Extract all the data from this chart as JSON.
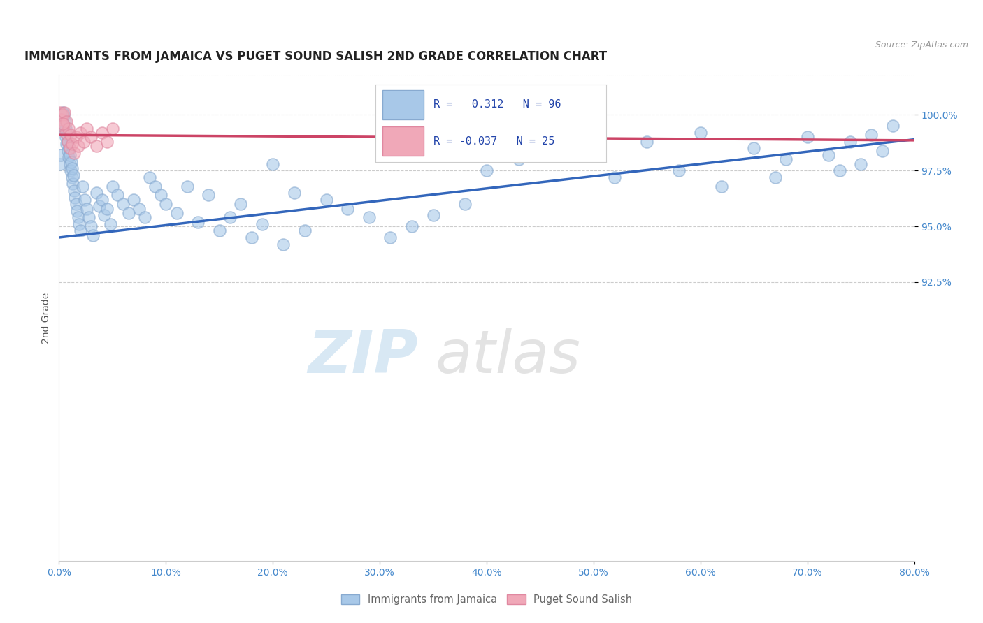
{
  "title": "IMMIGRANTS FROM JAMAICA VS PUGET SOUND SALISH 2ND GRADE CORRELATION CHART",
  "source": "Source: ZipAtlas.com",
  "ylabel": "2nd Grade",
  "xlim": [
    0.0,
    80.0
  ],
  "ylim": [
    80.0,
    101.8
  ],
  "x_ticks": [
    0.0,
    10.0,
    20.0,
    30.0,
    40.0,
    50.0,
    60.0,
    70.0,
    80.0
  ],
  "y_ticks": [
    92.5,
    95.0,
    97.5,
    100.0
  ],
  "blue_r": 0.312,
  "blue_n": 96,
  "pink_r": -0.037,
  "pink_n": 25,
  "blue_color": "#a8c8e8",
  "pink_color": "#f0a8b8",
  "blue_edge_color": "#88aad0",
  "pink_edge_color": "#e088a0",
  "blue_line_color": "#3366bb",
  "pink_line_color": "#cc4466",
  "watermark_zip": "ZIP",
  "watermark_atlas": "atlas",
  "legend_label_blue": "Immigrants from Jamaica",
  "legend_label_pink": "Puget Sound Salish",
  "blue_slope": 0.055,
  "blue_intercept": 94.5,
  "pink_slope": -0.003,
  "pink_intercept": 99.1,
  "blue_x": [
    0.1,
    0.15,
    0.2,
    0.25,
    0.3,
    0.35,
    0.4,
    0.45,
    0.5,
    0.55,
    0.6,
    0.65,
    0.7,
    0.75,
    0.8,
    0.85,
    0.9,
    0.95,
    1.0,
    1.05,
    1.1,
    1.15,
    1.2,
    1.25,
    1.3,
    1.35,
    1.4,
    1.5,
    1.6,
    1.7,
    1.8,
    1.9,
    2.0,
    2.2,
    2.4,
    2.6,
    2.8,
    3.0,
    3.2,
    3.5,
    3.8,
    4.0,
    4.2,
    4.5,
    4.8,
    5.0,
    5.5,
    6.0,
    6.5,
    7.0,
    7.5,
    8.0,
    8.5,
    9.0,
    9.5,
    10.0,
    11.0,
    12.0,
    13.0,
    14.0,
    15.0,
    16.0,
    17.0,
    18.0,
    19.0,
    20.0,
    21.0,
    22.0,
    23.0,
    25.0,
    27.0,
    29.0,
    31.0,
    33.0,
    35.0,
    38.0,
    40.0,
    43.0,
    46.0,
    50.0,
    52.0,
    55.0,
    58.0,
    60.0,
    62.0,
    65.0,
    67.0,
    68.0,
    70.0,
    72.0,
    73.0,
    74.0,
    75.0,
    76.0,
    77.0,
    78.0
  ],
  "blue_y": [
    97.8,
    98.2,
    99.5,
    100.0,
    99.8,
    100.1,
    99.6,
    100.0,
    99.3,
    99.7,
    99.0,
    99.4,
    98.7,
    99.1,
    98.4,
    98.8,
    98.1,
    98.5,
    97.8,
    98.2,
    97.5,
    97.9,
    97.2,
    97.6,
    96.9,
    97.3,
    96.6,
    96.3,
    96.0,
    95.7,
    95.4,
    95.1,
    94.8,
    96.8,
    96.2,
    95.8,
    95.4,
    95.0,
    94.6,
    96.5,
    95.9,
    96.2,
    95.5,
    95.8,
    95.1,
    96.8,
    96.4,
    96.0,
    95.6,
    96.2,
    95.8,
    95.4,
    97.2,
    96.8,
    96.4,
    96.0,
    95.6,
    96.8,
    95.2,
    96.4,
    94.8,
    95.4,
    96.0,
    94.5,
    95.1,
    97.8,
    94.2,
    96.5,
    94.8,
    96.2,
    95.8,
    95.4,
    94.5,
    95.0,
    95.5,
    96.0,
    97.5,
    98.0,
    98.5,
    99.0,
    97.2,
    98.8,
    97.5,
    99.2,
    96.8,
    98.5,
    97.2,
    98.0,
    99.0,
    98.2,
    97.5,
    98.8,
    97.8,
    99.1,
    98.4,
    99.5
  ],
  "pink_x": [
    0.1,
    0.2,
    0.3,
    0.4,
    0.5,
    0.6,
    0.7,
    0.8,
    0.9,
    1.0,
    1.1,
    1.2,
    1.4,
    1.6,
    1.8,
    2.0,
    2.3,
    2.6,
    3.0,
    3.5,
    4.0,
    4.5,
    5.0,
    50.0,
    0.35
  ],
  "pink_y": [
    100.1,
    99.8,
    100.0,
    99.5,
    100.1,
    99.2,
    99.7,
    98.8,
    99.4,
    98.5,
    99.1,
    98.7,
    98.3,
    99.0,
    98.6,
    99.2,
    98.8,
    99.4,
    99.0,
    98.6,
    99.2,
    98.8,
    99.4,
    98.8,
    99.6
  ]
}
